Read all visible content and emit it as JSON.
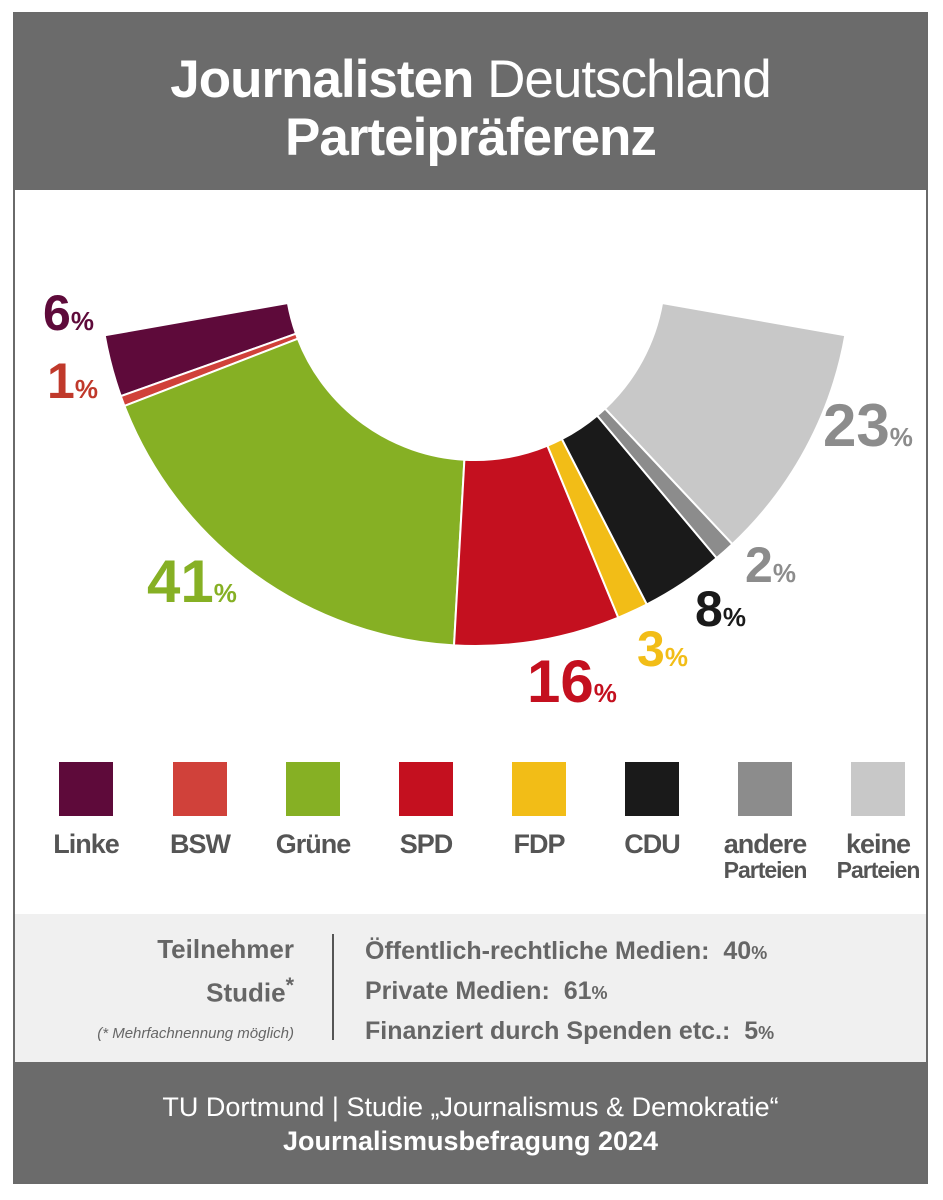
{
  "header": {
    "title_bold": "Journalisten",
    "title_light": "Deutschland",
    "subtitle": "Parteipräferenz"
  },
  "chart_data": {
    "type": "pie",
    "title": "Journalisten Deutschland Parteipräferenz",
    "unit": "%",
    "categories": [
      "Linke",
      "BSW",
      "Grüne",
      "SPD",
      "FDP",
      "CDU",
      "andere Parteien",
      "keine Parteien"
    ],
    "values": [
      6,
      1,
      41,
      16,
      3,
      8,
      2,
      23
    ],
    "colors": [
      "#5e0a3a",
      "#d0413a",
      "#86b024",
      "#c4101f",
      "#f2bd17",
      "#1a1a1a",
      "#8c8c8c",
      "#c8c8c8"
    ],
    "value_labels": [
      "6",
      "1",
      "41",
      "16",
      "3",
      "8",
      "2",
      "23"
    ],
    "label_colors": [
      "#5e0a3a",
      "#c0392b",
      "#86b024",
      "#c4101f",
      "#f2bd17",
      "#1a1a1a",
      "#8c8c8c",
      "#8c8c8c"
    ]
  },
  "legend": [
    {
      "line1": "Linke",
      "line2": ""
    },
    {
      "line1": "BSW",
      "line2": ""
    },
    {
      "line1": "Grüne",
      "line2": ""
    },
    {
      "line1": "SPD",
      "line2": ""
    },
    {
      "line1": "FDP",
      "line2": ""
    },
    {
      "line1": "CDU",
      "line2": ""
    },
    {
      "line1": "andere",
      "line2": "Parteien"
    },
    {
      "line1": "keine",
      "line2": "Parteien"
    }
  ],
  "info": {
    "left_line1": "Teilnehmer",
    "left_line2": "Studie",
    "left_star": "*",
    "note": "(* Mehrfachnennung möglich)",
    "rows": [
      {
        "label": "Öffentlich-rechtliche Medien:",
        "value": "40",
        "unit": "%"
      },
      {
        "label": "Private Medien:",
        "value": "61",
        "unit": "%"
      },
      {
        "label": "Finanziert durch Spenden etc.:",
        "value": "5",
        "unit": "%"
      }
    ]
  },
  "footer": {
    "line1": "TU Dortmund  |  Studie „Journalismus & Demokratie“",
    "line2": "Journalismusbefragung 2024"
  }
}
